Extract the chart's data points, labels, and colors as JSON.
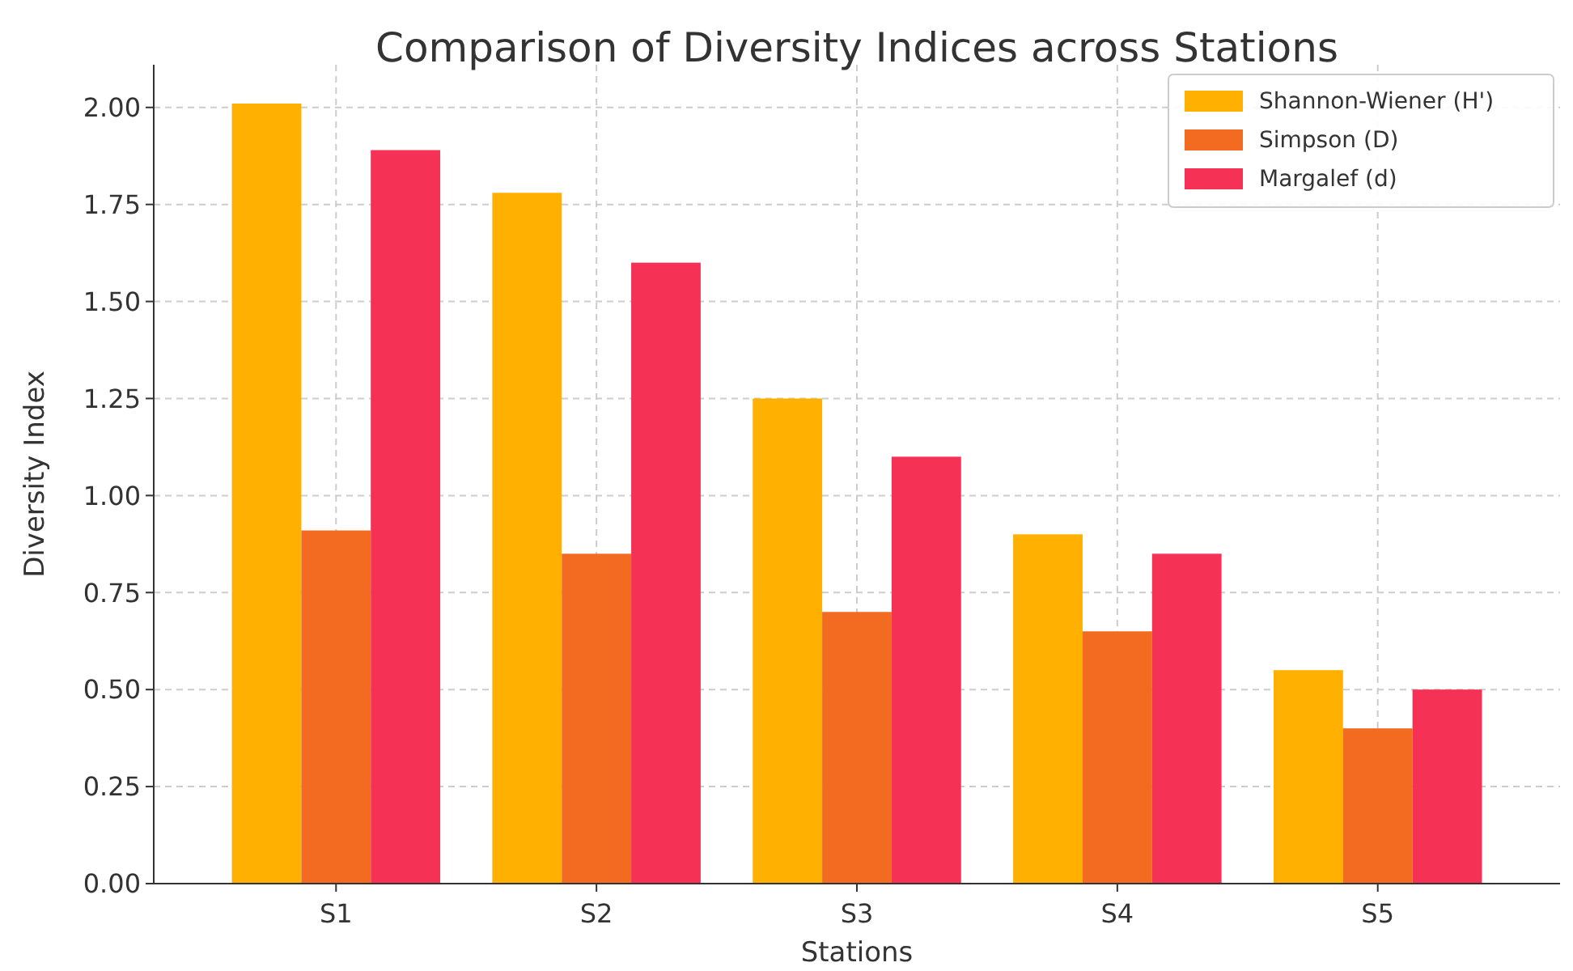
{
  "chart_data": {
    "type": "bar",
    "title": "Comparison of Diversity Indices across Stations",
    "xlabel": "Stations",
    "ylabel": "Diversity Index",
    "categories": [
      "S1",
      "S2",
      "S3",
      "S4",
      "S5"
    ],
    "series": [
      {
        "name": "Shannon-Wiener (H')",
        "color": "#ffb000",
        "values": [
          2.01,
          1.78,
          1.25,
          0.9,
          0.55
        ]
      },
      {
        "name": "Simpson (D)",
        "color": "#f26b21",
        "values": [
          0.91,
          0.85,
          0.7,
          0.65,
          0.4
        ]
      },
      {
        "name": "Margalef (d)",
        "color": "#f53155",
        "values": [
          1.89,
          1.6,
          1.1,
          0.85,
          0.5
        ]
      }
    ],
    "ylim": [
      0,
      2.11
    ],
    "yticks": [
      {
        "value": 0,
        "label": "0.00"
      },
      {
        "value": 0.25,
        "label": "0.25"
      },
      {
        "value": 0.5,
        "label": "0.50"
      },
      {
        "value": 0.75,
        "label": "0.75"
      },
      {
        "value": 1,
        "label": "1.00"
      },
      {
        "value": 1.25,
        "label": "1.25"
      },
      {
        "value": 1.5,
        "label": "1.50"
      },
      {
        "value": 1.75,
        "label": "1.75"
      },
      {
        "value": 2,
        "label": "2.00"
      }
    ],
    "grid": true,
    "legend": "top right"
  }
}
